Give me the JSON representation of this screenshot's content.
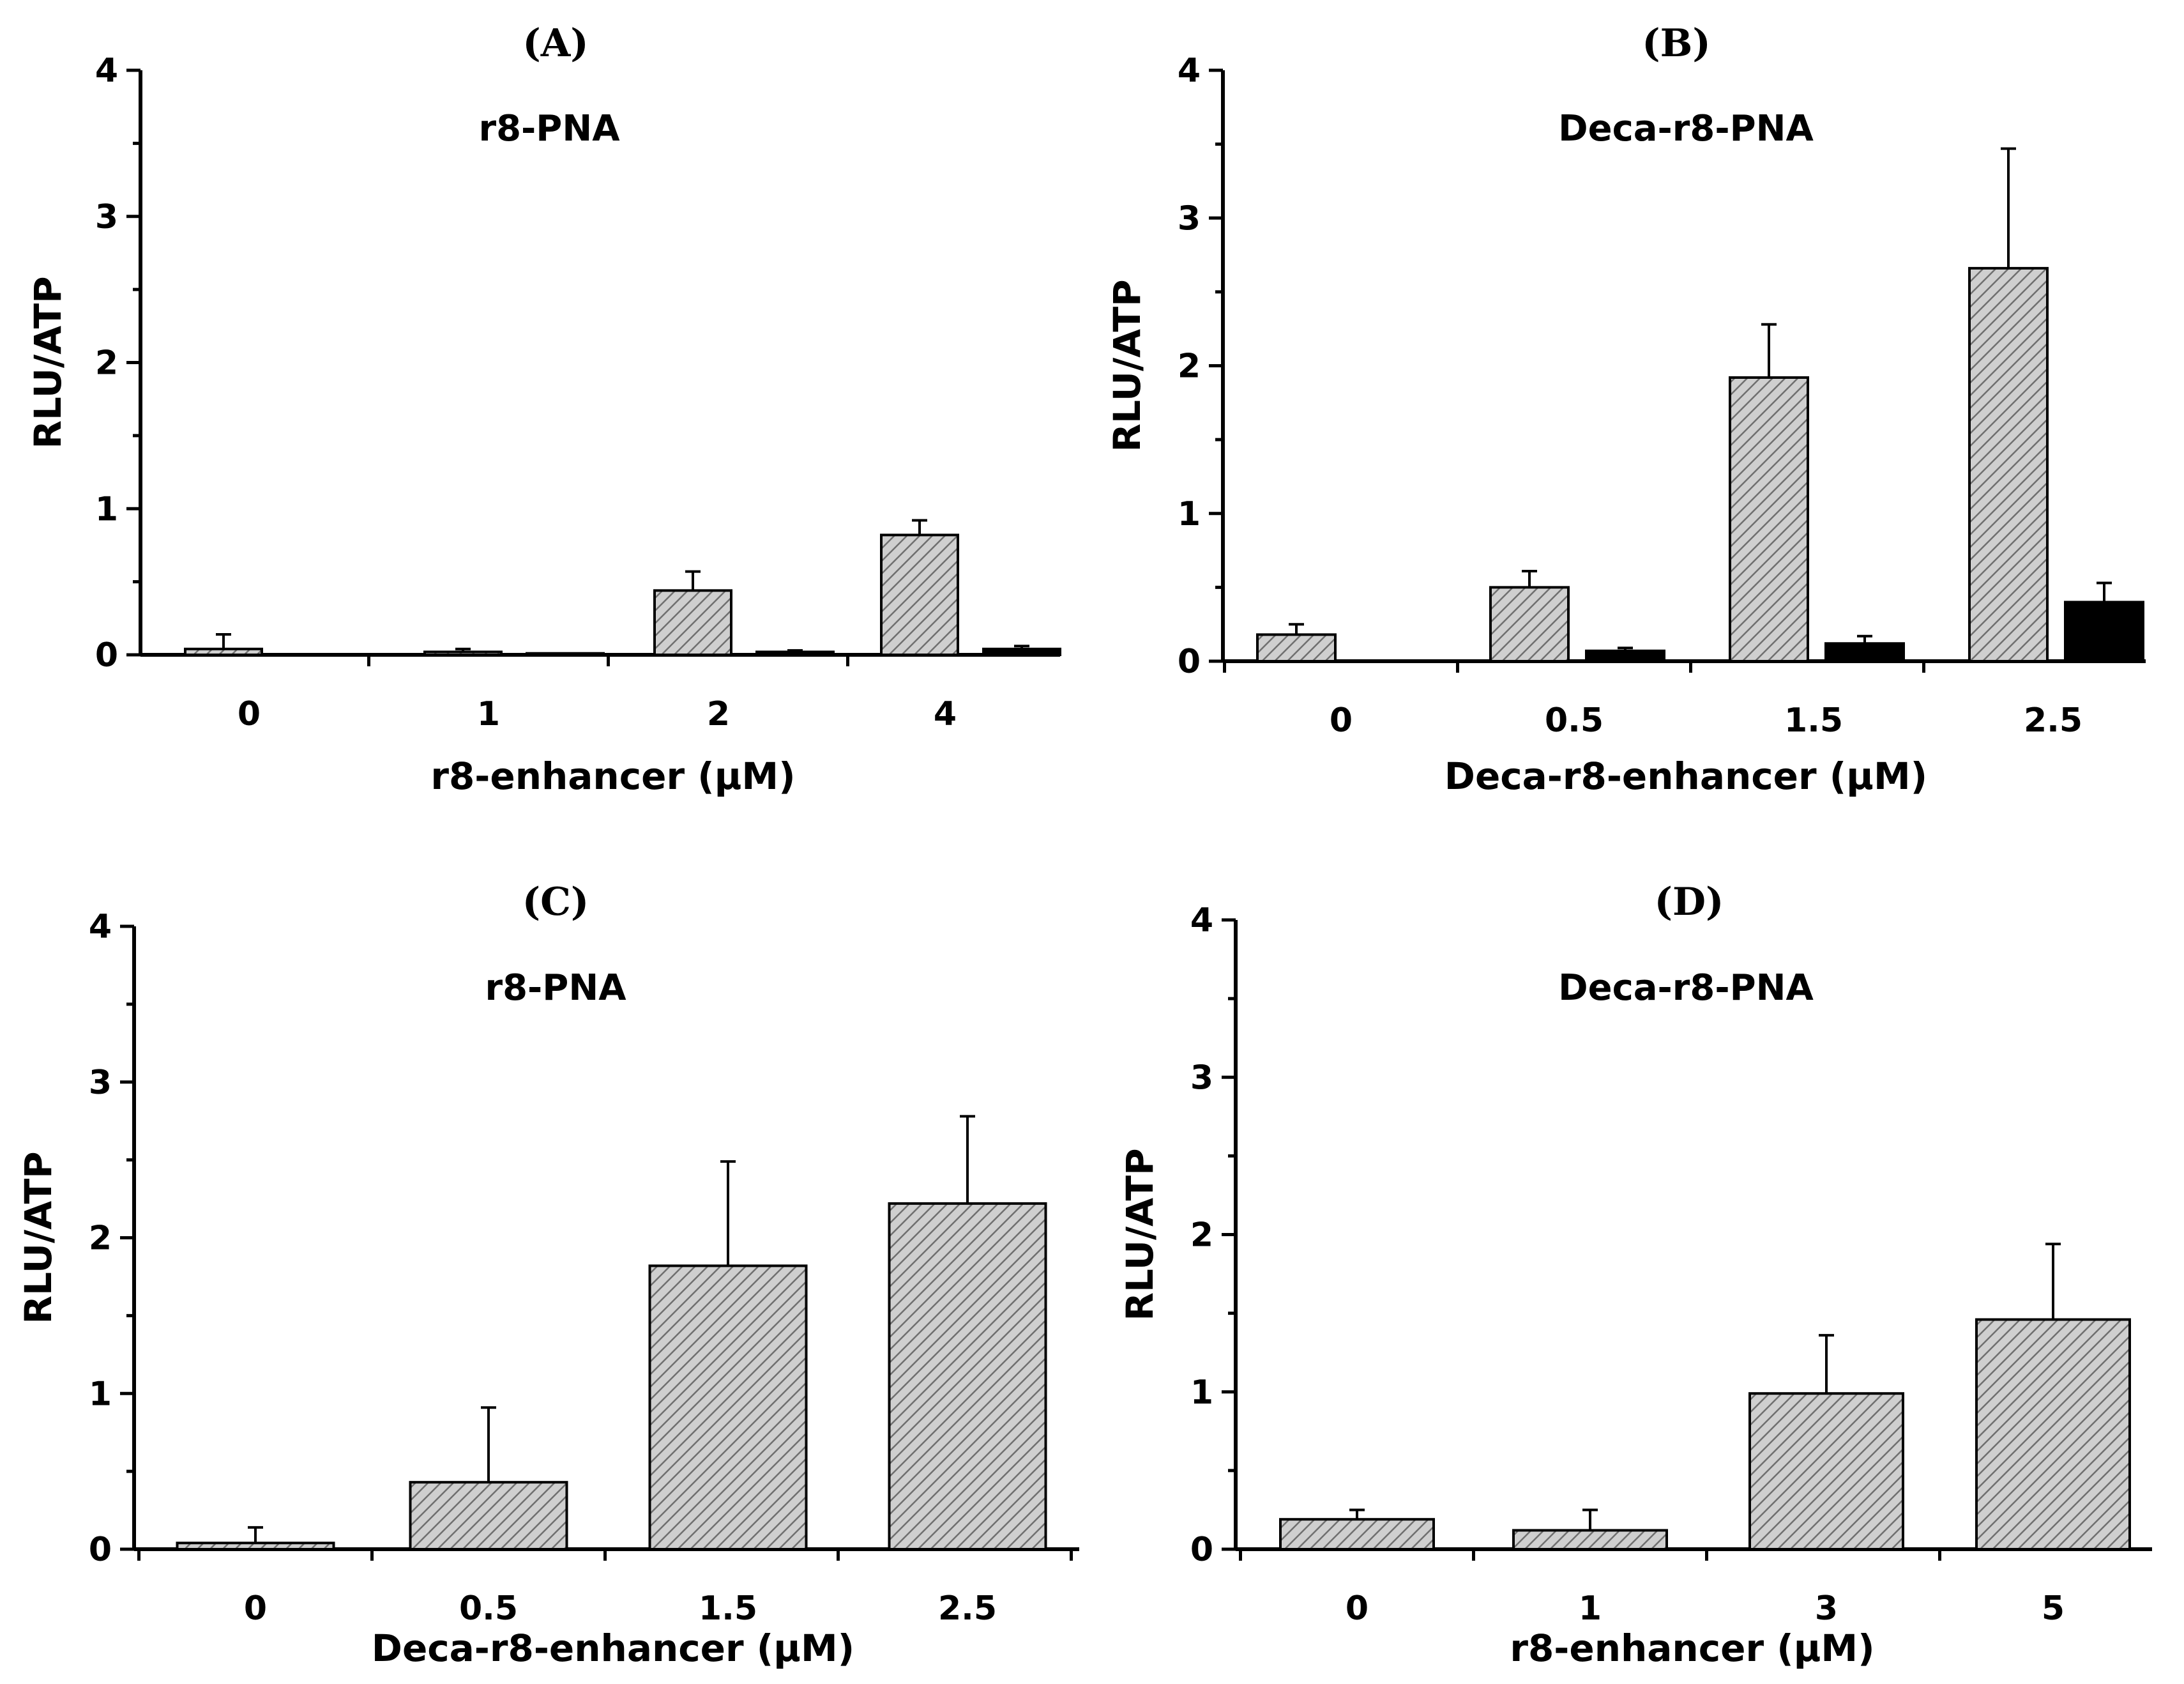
{
  "colors": {
    "axis": "#000000",
    "hatch_fill": "#cfcfcf",
    "hatch_line": "#6f6f6f",
    "solid_bar": "#000000"
  },
  "chart_data": [
    {
      "type": "bar",
      "panel_label": "(A)",
      "title": "r8-PNA",
      "xlabel": "r8-enhancer (μM)",
      "ylabel": "RLU/ATP",
      "ylim": [
        0,
        4
      ],
      "yticks": [
        "0",
        "1",
        "2",
        "3",
        "4"
      ],
      "categories": [
        "0",
        "1",
        "2",
        "4"
      ],
      "series": [
        {
          "name": "hatched",
          "style": "hatched",
          "values": [
            0.04,
            0.02,
            0.44,
            0.82
          ],
          "errors": [
            0.1,
            0.02,
            0.13,
            0.1
          ]
        },
        {
          "name": "solid",
          "style": "solid",
          "values": [
            0.0,
            0.01,
            0.02,
            0.04
          ],
          "errors": [
            0.0,
            0.0,
            0.01,
            0.02
          ]
        }
      ]
    },
    {
      "type": "bar",
      "panel_label": "(B)",
      "title": "Deca-r8-PNA",
      "xlabel": "Deca-r8-enhancer (μM)",
      "ylabel": "RLU/ATP",
      "ylim": [
        0,
        4
      ],
      "yticks": [
        "0",
        "1",
        "2",
        "3",
        "4"
      ],
      "categories": [
        "0",
        "0.5",
        "1.5",
        "2.5"
      ],
      "series": [
        {
          "name": "hatched",
          "style": "hatched",
          "values": [
            0.18,
            0.5,
            1.92,
            2.66
          ],
          "errors": [
            0.07,
            0.11,
            0.36,
            0.81
          ]
        },
        {
          "name": "solid",
          "style": "solid",
          "values": [
            0.0,
            0.07,
            0.12,
            0.4
          ],
          "errors": [
            0.0,
            0.02,
            0.05,
            0.13
          ]
        }
      ]
    },
    {
      "type": "bar",
      "panel_label": "(C)",
      "title": "r8-PNA",
      "xlabel": "Deca-r8-enhancer (μM)",
      "ylabel": "RLU/ATP",
      "ylim": [
        0,
        4
      ],
      "yticks": [
        "0",
        "1",
        "2",
        "3",
        "4"
      ],
      "categories": [
        "0",
        "0.5",
        "1.5",
        "2.5"
      ],
      "series": [
        {
          "name": "hatched",
          "style": "hatched",
          "values": [
            0.04,
            0.43,
            1.82,
            2.22
          ],
          "errors": [
            0.1,
            0.48,
            0.67,
            0.56
          ]
        }
      ]
    },
    {
      "type": "bar",
      "panel_label": "(D)",
      "title": "Deca-r8-PNA",
      "xlabel": "r8-enhancer (μM)",
      "ylabel": "RLU/ATP",
      "ylim": [
        0,
        4
      ],
      "yticks": [
        "0",
        "1",
        "2",
        "3",
        "4"
      ],
      "categories": [
        "0",
        "1",
        "3",
        "5"
      ],
      "series": [
        {
          "name": "hatched",
          "style": "hatched",
          "values": [
            0.19,
            0.12,
            0.99,
            1.46
          ],
          "errors": [
            0.06,
            0.13,
            0.37,
            0.48
          ]
        }
      ]
    }
  ]
}
